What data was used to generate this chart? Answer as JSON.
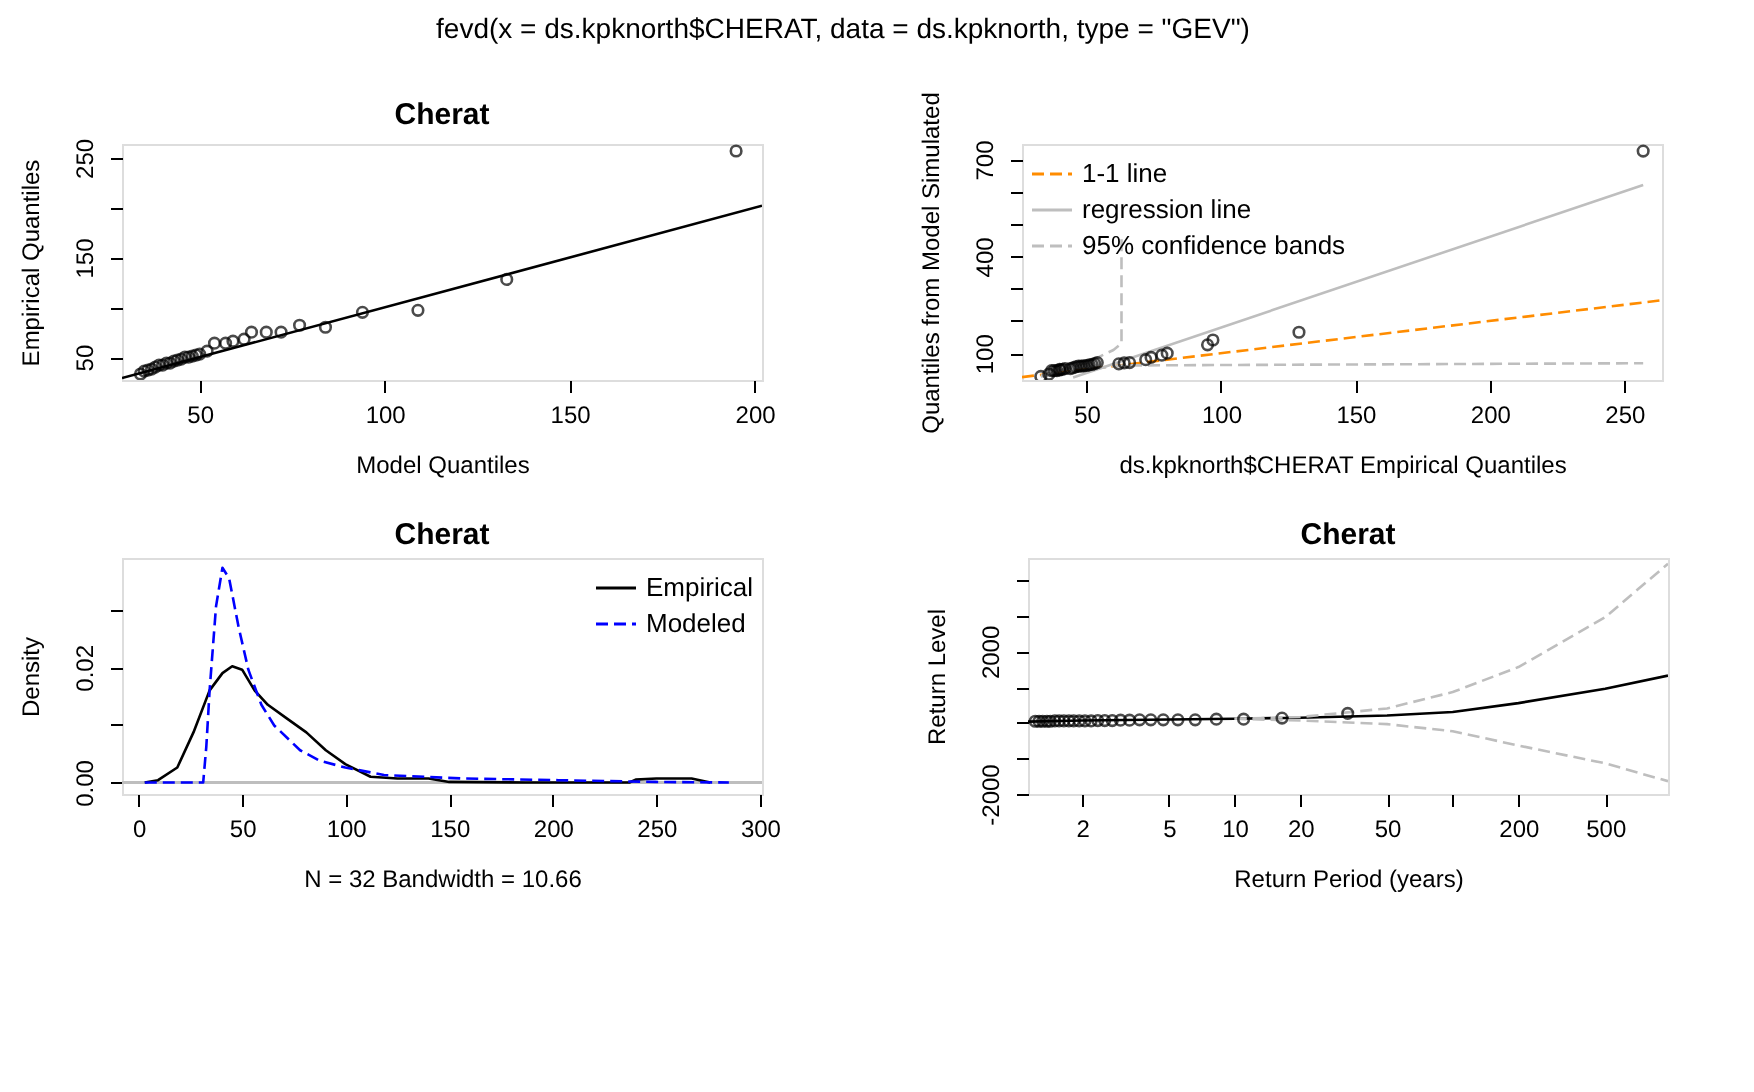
{
  "chart_data": [
    {
      "type": "scatter",
      "title": "Cherat",
      "xlabel": "Model Quantiles",
      "ylabel": "Empirical Quantiles",
      "annotations": [
        "fevd(x = ds.kpknorth$CHERAT, data = ds.kpknorth, type = \"GEV\")"
      ],
      "xlim": [
        29,
        202
      ],
      "ylim": [
        27,
        264
      ],
      "xticks": [
        50,
        100,
        150,
        200
      ],
      "yticks": [
        50,
        {
          "value": 100,
          "label": null
        },
        150,
        {
          "value": 200,
          "label": null
        },
        250
      ],
      "grid": false,
      "legend": false,
      "series": [
        {
          "type": "scatter",
          "color": "#000000",
          "marker": "circle",
          "x": [
            34,
            35,
            36,
            37,
            38,
            39,
            40,
            41,
            42,
            43,
            44,
            45,
            46,
            47,
            48,
            49,
            50,
            52,
            54,
            57,
            59,
            62,
            64,
            68,
            72,
            77,
            84,
            94,
            109,
            133,
            195
          ],
          "values": [
            33,
            36,
            37,
            38,
            40,
            42,
            42,
            44,
            44,
            46,
            47,
            48,
            50,
            50,
            51,
            52,
            53,
            56,
            64,
            64,
            66,
            68,
            75,
            75,
            75,
            82,
            80,
            95,
            97,
            128,
            257
          ]
        },
        {
          "type": "line",
          "color": "#000000",
          "marker": "none",
          "line_style": "solid",
          "x": [
            29,
            202
          ],
          "values": [
            29,
            202
          ]
        }
      ]
    },
    {
      "type": "scatter",
      "xlabel": "ds.kpknorth$CHERAT Empirical Quantiles",
      "ylabel": "Quantiles from Model Simulated",
      "xlim": [
        26,
        264
      ],
      "ylim": [
        17,
        748
      ],
      "xticks": [
        50,
        100,
        150,
        200,
        250
      ],
      "yticks": [
        100,
        {
          "value": 200,
          "label": null
        },
        {
          "value": 300,
          "label": null
        },
        400,
        {
          "value": 500,
          "label": null
        },
        {
          "value": 600,
          "label": null
        },
        700
      ],
      "grid": false,
      "legend": "top left",
      "series": [
        {
          "type": "line",
          "name": "1-1 line",
          "color": "#ff8c00",
          "line_style": "dashed",
          "marker": "none",
          "x": [
            26,
            264
          ],
          "values": [
            26,
            264
          ]
        },
        {
          "type": "line",
          "name": "regression line",
          "color": "#bebebe",
          "line_style": "solid",
          "marker": "none",
          "x": [
            45,
            257
          ],
          "values": [
            25,
            621
          ]
        },
        {
          "type": "line",
          "name": "95% confidence bands",
          "color": "#bebebe",
          "line_style": "dashed",
          "marker": "none",
          "x": [
            33,
            50,
            60,
            63,
            63
          ],
          "values": [
            30,
            70,
            110,
            130,
            453
          ]
        },
        {
          "type": "line",
          "color": "#bebebe",
          "line_style": "dashed",
          "marker": "none",
          "x": [
            33,
            62,
            257
          ],
          "values": [
            28,
            62,
            69
          ]
        },
        {
          "type": "scatter",
          "color": "#000000",
          "marker": "circle",
          "x": [
            33,
            36,
            37,
            38,
            39,
            40,
            40,
            41,
            42,
            44,
            45,
            46,
            47,
            48,
            49,
            50,
            51,
            52,
            53,
            54,
            62,
            64,
            66,
            72,
            74,
            78,
            80,
            95,
            97,
            129,
            257
          ],
          "values": [
            28,
            35,
            46,
            46,
            46,
            48,
            50,
            50,
            52,
            52,
            55,
            58,
            60,
            60,
            61,
            62,
            64,
            65,
            68,
            71,
            67,
            70,
            71,
            80,
            87,
            94,
            100,
            126,
            141,
            165,
            726
          ]
        }
      ]
    },
    {
      "type": "line",
      "title": "Cherat",
      "xlabel": "N = 32   Bandwidth = 10.66",
      "ylabel": "Density",
      "xlim": [
        -8,
        301
      ],
      "ylim": [
        -0.002,
        0.039
      ],
      "xticks": [
        0,
        50,
        100,
        150,
        200,
        250,
        300
      ],
      "yticks": [
        {
          "value": 0,
          "label": "0.00"
        },
        {
          "value": 0.01,
          "label": null
        },
        {
          "value": 0.02,
          "label": "0.02"
        },
        {
          "value": 0.03,
          "label": null
        }
      ],
      "grid": false,
      "legend": "top right",
      "ref_lines": [
        {
          "axis": "y",
          "value": 0,
          "color": "#bebebe"
        }
      ],
      "series": [
        {
          "name": "Empirical",
          "color": "#000000",
          "line_style": "solid",
          "x": [
            3,
            9.4,
            18.7,
            26.5,
            34.3,
            40.5,
            45.2,
            50,
            56,
            62.4,
            71.7,
            81,
            90.4,
            99.8,
            112,
            125,
            140,
            150,
            187,
            237,
            240,
            250,
            267,
            276
          ],
          "values": [
            0,
            0.0004,
            0.0026,
            0.0087,
            0.016,
            0.019,
            0.0202,
            0.0196,
            0.016,
            0.0135,
            0.0111,
            0.0087,
            0.0056,
            0.0032,
            0.001,
            0.0007,
            0.0007,
            0.0001,
            0,
            0,
            0.0005,
            0.0007,
            0.0007,
            0
          ]
        },
        {
          "name": "Modeled",
          "color": "#0000ff",
          "line_style": "dashed",
          "x": [
            3,
            31.2,
            32.7,
            34.3,
            37.4,
            40.5,
            43.7,
            48.3,
            53,
            59.3,
            65.5,
            78,
            87.3,
            99.8,
            118.5,
            156,
            202.7,
            249.5,
            285
          ],
          "values": [
            0,
            0,
            0.0062,
            0.016,
            0.0306,
            0.0373,
            0.0355,
            0.027,
            0.0196,
            0.0135,
            0.0099,
            0.0056,
            0.0038,
            0.0026,
            0.0013,
            0.0007,
            0.0004,
            0.0001,
            0
          ]
        }
      ]
    },
    {
      "type": "line",
      "title": "Cherat",
      "xlabel": "Return Period (years)",
      "ylabel": "Return Level",
      "log": "x",
      "xlim": [
        1.13,
        970
      ],
      "ylim": [
        -2000,
        4620
      ],
      "xticks": [
        2,
        5,
        10,
        20,
        50,
        {
          "value": 100,
          "label": null
        },
        200,
        500
      ],
      "yticks": [
        {
          "value": -2000,
          "label": "-2000"
        },
        {
          "value": -1000,
          "label": null
        },
        {
          "value": 0,
          "label": null
        },
        {
          "value": 1000,
          "label": null
        },
        {
          "value": 2000,
          "label": "2000"
        },
        {
          "value": 3000,
          "label": null
        },
        {
          "value": 4000,
          "label": null
        }
      ],
      "grid": false,
      "legend": false,
      "series": [
        {
          "type": "line",
          "color": "#000000",
          "line_style": "solid",
          "marker": "none",
          "x": [
            1.13,
            2,
            5,
            10,
            20,
            50,
            100,
            200,
            500,
            970
          ],
          "values": [
            30,
            60,
            90,
            110,
            140,
            200,
            300,
            550,
            950,
            1320
          ]
        },
        {
          "type": "line",
          "color": "#bebebe",
          "line_style": "dashed",
          "marker": "none",
          "x": [
            10,
            20,
            50,
            100,
            200,
            500,
            970
          ],
          "values": [
            110,
            160,
            400,
            860,
            1560,
            2960,
            4460
          ]
        },
        {
          "type": "line",
          "color": "#bebebe",
          "line_style": "dashed",
          "marker": "none",
          "x": [
            10,
            20,
            50,
            100,
            200,
            500,
            970
          ],
          "values": [
            110,
            60,
            -40,
            -240,
            -640,
            -1140,
            -1640
          ]
        },
        {
          "type": "scatter",
          "color": "#000000",
          "marker": "circle",
          "x": [
            33,
            16.5,
            11,
            8.25,
            6.6,
            5.5,
            4.71,
            4.13,
            3.67,
            3.3,
            3,
            2.75,
            2.54,
            2.36,
            2.2,
            2.06,
            1.94,
            1.83,
            1.74,
            1.65,
            1.57,
            1.5,
            1.43,
            1.38,
            1.32,
            1.27,
            1.22
          ],
          "values": [
            260,
            130,
            100,
            100,
            80,
            80,
            80,
            80,
            80,
            70,
            70,
            60,
            60,
            60,
            50,
            50,
            50,
            50,
            50,
            50,
            50,
            50,
            40,
            40,
            40,
            40,
            40
          ]
        }
      ]
    }
  ]
}
